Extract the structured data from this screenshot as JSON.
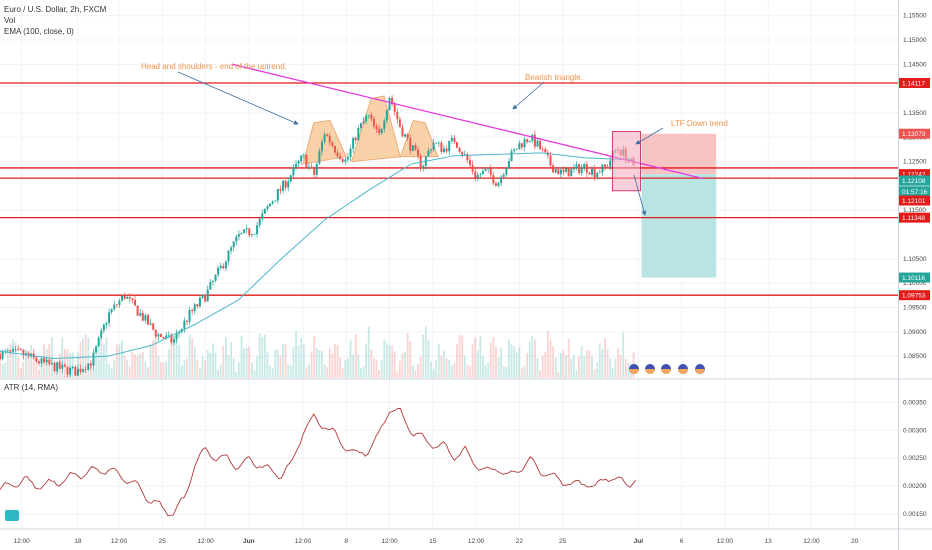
{
  "legend": {
    "symbol": "Euro / U.S. Dollar, 2h, FXCM",
    "vol": "Vol",
    "ema": "EMA (100, close, 0)",
    "atr": "ATR (14, RMA)"
  },
  "colors": {
    "bull": "#26a69a",
    "bear": "#ef5350",
    "ema": "#4db6c8",
    "atr": "#b13a3a",
    "level": "#e21b1b",
    "trend": "#e33be0",
    "hs_fill": "#f6c28b",
    "annot": "#f0924a",
    "short_stop": "#f8c3c3",
    "short_target": "#b9e4e4"
  },
  "annotations": {
    "hs": "Head and shoulders - end of the uptrend.",
    "triangle": "Bearish triangle.",
    "ltf": "LTF Down trend"
  },
  "chart_data": [
    {
      "type": "candlestick",
      "symbol": "EURUSD",
      "timeframe": "2h",
      "ylim": [
        1.0805,
        1.157
      ],
      "y_ticks": [
        "1.15500",
        "1.15000",
        "1.14500",
        "1.13500",
        "1.13000",
        "1.12500",
        "1.11500",
        "1.10500",
        "1.10000",
        "1.09500",
        "1.09000",
        "1.08500"
      ],
      "y_tick_values": [
        1.155,
        1.15,
        1.145,
        1.135,
        1.13,
        1.125,
        1.115,
        1.105,
        1.1,
        1.095,
        1.09,
        1.085
      ],
      "x_ticks": [
        "12:00",
        "18",
        "12:00",
        "25",
        "12:00",
        "Jun",
        "12:00",
        "8",
        "12:00",
        "15",
        "12:00",
        "22",
        "25",
        "Jul",
        "6",
        "12:00",
        "13",
        "12:00",
        "20"
      ],
      "x_tick_values": [
        0,
        5.2,
        9,
        13,
        17,
        21,
        26,
        30,
        34,
        38,
        42,
        46,
        50,
        57,
        61,
        65,
        69,
        73,
        77
      ],
      "x_range": [
        -2,
        81
      ],
      "closes_anchor": [
        [
          0,
          1.0855
        ],
        [
          2,
          1.0835
        ],
        [
          3.5,
          1.0825
        ],
        [
          5,
          1.0818
        ],
        [
          6.5,
          1.084
        ],
        [
          8,
          1.0935
        ],
        [
          9.5,
          1.0975
        ],
        [
          11,
          1.0935
        ],
        [
          12.5,
          1.0895
        ],
        [
          14,
          1.088
        ],
        [
          15.5,
          1.0935
        ],
        [
          17,
          1.0975
        ],
        [
          18.5,
          1.1035
        ],
        [
          20,
          1.1095
        ],
        [
          21.5,
          1.111
        ],
        [
          23,
          1.1165
        ],
        [
          24.5,
          1.121
        ],
        [
          26,
          1.126
        ],
        [
          27,
          1.122
        ],
        [
          28,
          1.131
        ],
        [
          29,
          1.1275
        ],
        [
          30,
          1.125
        ],
        [
          31,
          1.131
        ],
        [
          32,
          1.1345
        ],
        [
          33,
          1.13
        ],
        [
          34,
          1.1385
        ],
        [
          35,
          1.132
        ],
        [
          36,
          1.128
        ],
        [
          37,
          1.124
        ],
        [
          38,
          1.129
        ],
        [
          39,
          1.1275
        ],
        [
          40,
          1.1295
        ],
        [
          41,
          1.126
        ],
        [
          42,
          1.122
        ],
        [
          43,
          1.123
        ],
        [
          44,
          1.1205
        ],
        [
          45,
          1.1255
        ],
        [
          46,
          1.1285
        ],
        [
          47,
          1.13
        ],
        [
          48,
          1.1275
        ],
        [
          49,
          1.124
        ],
        [
          50,
          1.1225
        ],
        [
          51,
          1.1232
        ],
        [
          52,
          1.124
        ],
        [
          53,
          1.1228
        ],
        [
          54,
          1.1238
        ],
        [
          55,
          1.1278
        ],
        [
          56,
          1.126
        ],
        [
          56.8,
          1.1225
        ]
      ],
      "ema_anchor": [
        [
          -2,
          1.086
        ],
        [
          3,
          1.0845
        ],
        [
          8,
          1.085
        ],
        [
          12,
          1.0872
        ],
        [
          16,
          1.0915
        ],
        [
          20,
          1.0965
        ],
        [
          24,
          1.105
        ],
        [
          28,
          1.113
        ],
        [
          32,
          1.119
        ],
        [
          36,
          1.1245
        ],
        [
          40,
          1.1262
        ],
        [
          44,
          1.1265
        ],
        [
          48,
          1.1268
        ],
        [
          52,
          1.1258
        ],
        [
          56.8,
          1.1253
        ]
      ],
      "price_tags": [
        {
          "label": "1.14117",
          "value": 1.14117,
          "color": "#e21b1b"
        },
        {
          "label": "1.13073",
          "value": 1.13073,
          "color": "#ef5350"
        },
        {
          "label": "1.12242",
          "value": 1.12242,
          "color": "#e21b1b"
        },
        {
          "label": "1.12114",
          "value": 1.12114,
          "color": "#3b6f6e"
        },
        {
          "label": "1.12108",
          "value": 1.12108,
          "color": "#26a69a"
        },
        {
          "label": "01:57:16",
          "value": 1.1189,
          "color": "#26a69a"
        },
        {
          "label": "1.12101",
          "value": 1.117,
          "color": "#e21b1b"
        },
        {
          "label": "1.11348",
          "value": 1.11348,
          "color": "#e21b1b"
        },
        {
          "label": "1.10116",
          "value": 1.10116,
          "color": "#26a69a"
        },
        {
          "label": "1.09753",
          "value": 1.09753,
          "color": "#e21b1b"
        }
      ],
      "horizontal_levels": [
        1.14117,
        1.1237,
        1.1216,
        1.11348,
        1.09753
      ],
      "trendline": {
        "from": [
          19.5,
          1.145
        ],
        "to": [
          63,
          1.1215
        ]
      },
      "short_position": {
        "x_start": 57.3,
        "x_end": 64.2,
        "entry": 1.12242,
        "stop": 1.13073,
        "target": 1.10116
      },
      "hs_shapes": [
        {
          "points": [
            [
              26,
              1.1245
            ],
            [
              27,
              1.133
            ],
            [
              28.5,
              1.1335
            ],
            [
              30,
              1.126
            ]
          ]
        },
        {
          "points": [
            [
              30.5,
              1.125
            ],
            [
              32.3,
              1.138
            ],
            [
              33.5,
              1.1385
            ],
            [
              35,
              1.126
            ]
          ]
        },
        {
          "points": [
            [
              35,
              1.126
            ],
            [
              36.2,
              1.1335
            ],
            [
              37.3,
              1.133
            ],
            [
              38.5,
              1.126
            ]
          ]
        }
      ]
    },
    {
      "type": "line",
      "name": "ATR (14, RMA)",
      "ylim": [
        0.00125,
        0.0039
      ],
      "y_ticks": [
        "0.00350",
        "0.00300",
        "0.00250",
        "0.00200",
        "0.00150"
      ],
      "y_tick_values": [
        0.0035,
        0.003,
        0.0025,
        0.002,
        0.0015
      ],
      "anchors": [
        [
          -2,
          0.00195
        ],
        [
          0,
          0.0021
        ],
        [
          2,
          0.002
        ],
        [
          4,
          0.00212
        ],
        [
          6,
          0.00225
        ],
        [
          8,
          0.0023
        ],
        [
          10,
          0.0021
        ],
        [
          12,
          0.00175
        ],
        [
          13,
          0.0016
        ],
        [
          14,
          0.00152
        ],
        [
          15,
          0.00175
        ],
        [
          16,
          0.0024
        ],
        [
          17,
          0.00265
        ],
        [
          18,
          0.0025
        ],
        [
          19,
          0.00248
        ],
        [
          20,
          0.00235
        ],
        [
          21,
          0.00245
        ],
        [
          22,
          0.0024
        ],
        [
          23,
          0.00225
        ],
        [
          24,
          0.0022
        ],
        [
          25,
          0.0024
        ],
        [
          26,
          0.003
        ],
        [
          27,
          0.0032
        ],
        [
          28,
          0.0031
        ],
        [
          29,
          0.0029
        ],
        [
          30,
          0.0027
        ],
        [
          31,
          0.00255
        ],
        [
          32,
          0.00265
        ],
        [
          33,
          0.0029
        ],
        [
          34,
          0.0034
        ],
        [
          35,
          0.0033
        ],
        [
          36,
          0.003
        ],
        [
          37,
          0.00285
        ],
        [
          38,
          0.00275
        ],
        [
          39,
          0.0027
        ],
        [
          40,
          0.00255
        ],
        [
          41,
          0.00262
        ],
        [
          42,
          0.0024
        ],
        [
          43,
          0.00225
        ],
        [
          44,
          0.00235
        ],
        [
          45,
          0.00215
        ],
        [
          46,
          0.00232
        ],
        [
          47,
          0.00245
        ],
        [
          48,
          0.00228
        ],
        [
          49,
          0.00215
        ],
        [
          50,
          0.0021
        ],
        [
          51,
          0.002
        ],
        [
          52,
          0.00208
        ],
        [
          53,
          0.00195
        ],
        [
          54,
          0.0022
        ],
        [
          55,
          0.0021
        ],
        [
          56,
          0.00205
        ],
        [
          56.8,
          0.0021
        ]
      ]
    }
  ]
}
